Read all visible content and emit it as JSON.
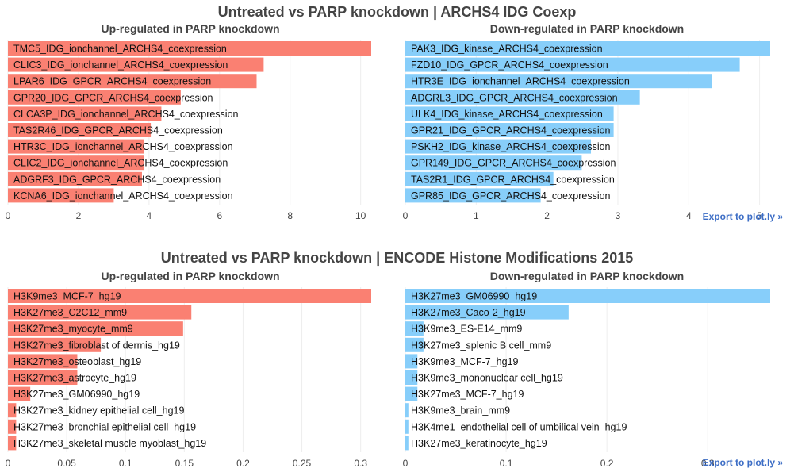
{
  "figures": [
    {
      "title": "Untreated vs PARP knockdown | ARCHS4 IDG Coexp",
      "export_label": "Export to plot.ly »",
      "panels": [
        {
          "title": "Up-regulated in PARP knockdown",
          "color": "#fa8072",
          "xlim": [
            0,
            10.3
          ],
          "ticks": [
            "0",
            "2",
            "4",
            "6",
            "8",
            "10"
          ],
          "tick_values": [
            0,
            2,
            4,
            6,
            8,
            10
          ],
          "bars": [
            {
              "label": "TMC5_IDG_ionchannel_ARCHS4_coexpression",
              "value": 10.3
            },
            {
              "label": "CLIC3_IDG_ionchannel_ARCHS4_coexpression",
              "value": 7.25
            },
            {
              "label": "LPAR6_IDG_GPCR_ARCHS4_coexpression",
              "value": 7.05
            },
            {
              "label": "GPR20_IDG_GPCR_ARCHS4_coexpression",
              "value": 4.9
            },
            {
              "label": "CLCA3P_IDG_ionchannel_ARCHS4_coexpression",
              "value": 4.35
            },
            {
              "label": "TAS2R46_IDG_GPCR_ARCHS4_coexpression",
              "value": 4.05
            },
            {
              "label": "HTR3C_IDG_ionchannel_ARCHS4_coexpression",
              "value": 3.85
            },
            {
              "label": "CLIC2_IDG_ionchannel_ARCHS4_coexpression",
              "value": 3.85
            },
            {
              "label": "ADGRF3_IDG_GPCR_ARCHS4_coexpression",
              "value": 3.8
            },
            {
              "label": "KCNA6_IDG_ionchannel_ARCHS4_coexpression",
              "value": 3.0
            }
          ]
        },
        {
          "title": "Down-regulated in PARP knockdown",
          "color": "#87cefa",
          "xlim": [
            0,
            5.15
          ],
          "ticks": [
            "0",
            "1",
            "2",
            "3",
            "4",
            "5"
          ],
          "tick_values": [
            0,
            1,
            2,
            3,
            4,
            5
          ],
          "bars": [
            {
              "label": "PAK3_IDG_kinase_ARCHS4_coexpression",
              "value": 5.15
            },
            {
              "label": "FZD10_IDG_GPCR_ARCHS4_coexpression",
              "value": 4.72
            },
            {
              "label": "HTR3E_IDG_ionchannel_ARCHS4_coexpression",
              "value": 4.33
            },
            {
              "label": "ADGRL3_IDG_GPCR_ARCHS4_coexpression",
              "value": 3.31
            },
            {
              "label": "ULK4_IDG_kinase_ARCHS4_coexpression",
              "value": 2.94
            },
            {
              "label": "GPR21_IDG_GPCR_ARCHS4_coexpression",
              "value": 2.94
            },
            {
              "label": "PSKH2_IDG_kinase_ARCHS4_coexpression",
              "value": 2.62
            },
            {
              "label": "GPR149_IDG_GPCR_ARCHS4_coexpression",
              "value": 2.49
            },
            {
              "label": "TAS2R1_IDG_GPCR_ARCHS4_coexpression",
              "value": 2.09
            },
            {
              "label": "GPR85_IDG_GPCR_ARCHS4_coexpression",
              "value": 1.91
            }
          ]
        }
      ]
    },
    {
      "title": "Untreated vs PARP knockdown | ENCODE Histone Modifications 2015",
      "export_label": "Export to plot.ly »",
      "panels": [
        {
          "title": "Up-regulated in PARP knockdown",
          "color": "#fa8072",
          "xlim": [
            0,
            0.309
          ],
          "ticks": [
            "0",
            "0.05",
            "0.1",
            "0.15",
            "0.2",
            "0.25",
            "0.3"
          ],
          "tick_values": [
            0,
            0.05,
            0.1,
            0.15,
            0.2,
            0.25,
            0.3
          ],
          "bars": [
            {
              "label": "H3K9me3_MCF-7_hg19",
              "value": 0.309
            },
            {
              "label": "H3K27me3_C2C12_mm9",
              "value": 0.156
            },
            {
              "label": "H3K27me3_myocyte_mm9",
              "value": 0.149
            },
            {
              "label": "H3K27me3_fibroblast of dermis_hg19",
              "value": 0.079
            },
            {
              "label": "H3K27me3_osteoblast_hg19",
              "value": 0.059
            },
            {
              "label": "H3K27me3_astrocyte_hg19",
              "value": 0.059
            },
            {
              "label": "H3K27me3_GM06990_hg19",
              "value": 0.019
            },
            {
              "label": "H3K27me3_kidney epithelial cell_hg19",
              "value": 0.007
            },
            {
              "label": "H3K27me3_bronchial epithelial cell_hg19",
              "value": 0.007
            },
            {
              "label": "H3K27me3_skeletal muscle myoblast_hg19",
              "value": 0.007
            }
          ]
        },
        {
          "title": "Down-regulated in PARP knockdown",
          "color": "#87cefa",
          "xlim": [
            0,
            0.362
          ],
          "ticks": [
            "0",
            "0.1",
            "0.2",
            "0.3"
          ],
          "tick_values": [
            0,
            0.1,
            0.2,
            0.3
          ],
          "bars": [
            {
              "label": "H3K27me3_GM06990_hg19",
              "value": 0.362
            },
            {
              "label": "H3K27me3_Caco-2_hg19",
              "value": 0.162
            },
            {
              "label": "H3K9me3_ES-E14_mm9",
              "value": 0.018
            },
            {
              "label": "H3K27me3_splenic B cell_mm9",
              "value": 0.018
            },
            {
              "label": "H3K9me3_MCF-7_hg19",
              "value": 0.012
            },
            {
              "label": "H3K9me3_mononuclear cell_hg19",
              "value": 0.012
            },
            {
              "label": "H3K27me3_MCF-7_hg19",
              "value": 0.012
            },
            {
              "label": "H3K9me3_brain_mm9",
              "value": 0.003
            },
            {
              "label": "H3K4me1_endothelial cell of umbilical vein_hg19",
              "value": 0.003
            },
            {
              "label": "H3K27me3_keratinocyte_hg19",
              "value": 0.003
            }
          ]
        }
      ]
    }
  ],
  "chart_data": [
    {
      "type": "bar",
      "title": "Untreated vs PARP knockdown | ARCHS4 IDG Coexp",
      "subtitle": "Up-regulated in PARP knockdown",
      "orientation": "horizontal",
      "categories": [
        "TMC5_IDG_ionchannel_ARCHS4_coexpression",
        "CLIC3_IDG_ionchannel_ARCHS4_coexpression",
        "LPAR6_IDG_GPCR_ARCHS4_coexpression",
        "GPR20_IDG_GPCR_ARCHS4_coexpression",
        "CLCA3P_IDG_ionchannel_ARCHS4_coexpression",
        "TAS2R46_IDG_GPCR_ARCHS4_coexpression",
        "HTR3C_IDG_ionchannel_ARCHS4_coexpression",
        "CLIC2_IDG_ionchannel_ARCHS4_coexpression",
        "ADGRF3_IDG_GPCR_ARCHS4_coexpression",
        "KCNA6_IDG_ionchannel_ARCHS4_coexpression"
      ],
      "values": [
        10.3,
        7.25,
        7.05,
        4.9,
        4.35,
        4.05,
        3.85,
        3.85,
        3.8,
        3.0
      ],
      "xlim": [
        0,
        10.3
      ],
      "grid": true,
      "color": "#fa8072"
    },
    {
      "type": "bar",
      "title": "Untreated vs PARP knockdown | ARCHS4 IDG Coexp",
      "subtitle": "Down-regulated in PARP knockdown",
      "orientation": "horizontal",
      "categories": [
        "PAK3_IDG_kinase_ARCHS4_coexpression",
        "FZD10_IDG_GPCR_ARCHS4_coexpression",
        "HTR3E_IDG_ionchannel_ARCHS4_coexpression",
        "ADGRL3_IDG_GPCR_ARCHS4_coexpression",
        "ULK4_IDG_kinase_ARCHS4_coexpression",
        "GPR21_IDG_GPCR_ARCHS4_coexpression",
        "PSKH2_IDG_kinase_ARCHS4_coexpression",
        "GPR149_IDG_GPCR_ARCHS4_coexpression",
        "TAS2R1_IDG_GPCR_ARCHS4_coexpression",
        "GPR85_IDG_GPCR_ARCHS4_coexpression"
      ],
      "values": [
        5.15,
        4.72,
        4.33,
        3.31,
        2.94,
        2.94,
        2.62,
        2.49,
        2.09,
        1.91
      ],
      "xlim": [
        0,
        5.15
      ],
      "grid": true,
      "color": "#87cefa"
    },
    {
      "type": "bar",
      "title": "Untreated vs PARP knockdown | ENCODE Histone Modifications 2015",
      "subtitle": "Up-regulated in PARP knockdown",
      "orientation": "horizontal",
      "categories": [
        "H3K9me3_MCF-7_hg19",
        "H3K27me3_C2C12_mm9",
        "H3K27me3_myocyte_mm9",
        "H3K27me3_fibroblast of dermis_hg19",
        "H3K27me3_osteoblast_hg19",
        "H3K27me3_astrocyte_hg19",
        "H3K27me3_GM06990_hg19",
        "H3K27me3_kidney epithelial cell_hg19",
        "H3K27me3_bronchial epithelial cell_hg19",
        "H3K27me3_skeletal muscle myoblast_hg19"
      ],
      "values": [
        0.309,
        0.156,
        0.149,
        0.079,
        0.059,
        0.059,
        0.019,
        0.007,
        0.007,
        0.007
      ],
      "xlim": [
        0,
        0.309
      ],
      "grid": true,
      "color": "#fa8072"
    },
    {
      "type": "bar",
      "title": "Untreated vs PARP knockdown | ENCODE Histone Modifications 2015",
      "subtitle": "Down-regulated in PARP knockdown",
      "orientation": "horizontal",
      "categories": [
        "H3K27me3_GM06990_hg19",
        "H3K27me3_Caco-2_hg19",
        "H3K9me3_ES-E14_mm9",
        "H3K27me3_splenic B cell_mm9",
        "H3K9me3_MCF-7_hg19",
        "H3K9me3_mononuclear cell_hg19",
        "H3K27me3_MCF-7_hg19",
        "H3K9me3_brain_mm9",
        "H3K4me1_endothelial cell of umbilical vein_hg19",
        "H3K27me3_keratinocyte_hg19"
      ],
      "values": [
        0.362,
        0.162,
        0.018,
        0.018,
        0.012,
        0.012,
        0.012,
        0.003,
        0.003,
        0.003
      ],
      "xlim": [
        0,
        0.362
      ],
      "grid": true,
      "color": "#87cefa"
    }
  ]
}
